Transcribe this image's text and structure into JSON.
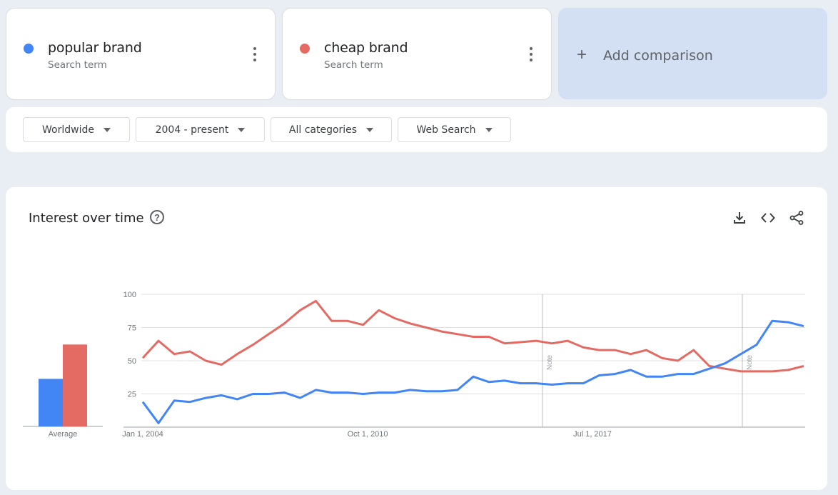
{
  "terms": [
    {
      "name": "popular brand",
      "subtitle": "Search term",
      "color": "#4285f4"
    },
    {
      "name": "cheap brand",
      "subtitle": "Search term",
      "color": "#e36b64"
    }
  ],
  "add_comparison": {
    "label": "Add comparison"
  },
  "filters": {
    "region": "Worldwide",
    "time": "2004 - present",
    "category": "All categories",
    "search_type": "Web Search"
  },
  "section": {
    "title": "Interest over time"
  },
  "icons": {
    "download": "download-icon",
    "embed": "embed-code-icon",
    "share": "share-icon",
    "help": "help-icon"
  },
  "chart_data": [
    {
      "type": "bar",
      "categories": [
        "Average"
      ],
      "series": [
        {
          "name": "popular brand",
          "values": [
            36
          ],
          "color": "#4285f4"
        },
        {
          "name": "cheap brand",
          "values": [
            62
          ],
          "color": "#e36b64"
        }
      ],
      "xlabel": "Average",
      "ylim": [
        0,
        100
      ]
    },
    {
      "type": "line",
      "x": [
        "2004-01",
        "2004-07",
        "2005-01",
        "2005-07",
        "2006-01",
        "2006-07",
        "2007-01",
        "2007-07",
        "2008-01",
        "2008-07",
        "2009-01",
        "2009-07",
        "2010-01",
        "2010-07",
        "2011-01",
        "2011-07",
        "2012-01",
        "2012-07",
        "2013-01",
        "2013-07",
        "2014-01",
        "2014-07",
        "2015-01",
        "2015-07",
        "2016-01",
        "2016-07",
        "2017-01",
        "2017-07",
        "2018-01",
        "2018-07",
        "2019-01",
        "2019-07",
        "2020-01",
        "2020-07",
        "2021-01",
        "2021-07",
        "2022-01",
        "2022-07",
        "2023-01",
        "2023-07",
        "2024-01",
        "2024-07",
        "2025-01"
      ],
      "series": [
        {
          "name": "popular brand",
          "color": "#4285f4",
          "values": [
            19,
            3,
            20,
            19,
            22,
            24,
            21,
            25,
            25,
            26,
            22,
            28,
            26,
            26,
            25,
            26,
            26,
            28,
            27,
            27,
            28,
            38,
            34,
            35,
            33,
            33,
            32,
            33,
            33,
            39,
            40,
            43,
            38,
            38,
            40,
            40,
            44,
            48,
            55,
            62,
            80,
            79,
            76
          ]
        },
        {
          "name": "cheap brand",
          "color": "#e36b64",
          "values": [
            52,
            65,
            55,
            57,
            50,
            47,
            55,
            62,
            70,
            78,
            88,
            95,
            80,
            80,
            77,
            88,
            82,
            78,
            75,
            72,
            70,
            68,
            68,
            63,
            64,
            65,
            63,
            65,
            60,
            58,
            58,
            55,
            58,
            52,
            50,
            58,
            46,
            44,
            42,
            42,
            42,
            43,
            46
          ]
        }
      ],
      "tick_labels": [
        "100",
        "75",
        "50",
        "25"
      ],
      "x_tick_labels": [
        "Jan 1, 2004",
        "Oct 1, 2010",
        "Jul 1, 2017"
      ],
      "annotations": [
        "Note",
        "Note"
      ],
      "ylim": [
        0,
        100
      ],
      "grid": true,
      "legend": "none"
    }
  ]
}
